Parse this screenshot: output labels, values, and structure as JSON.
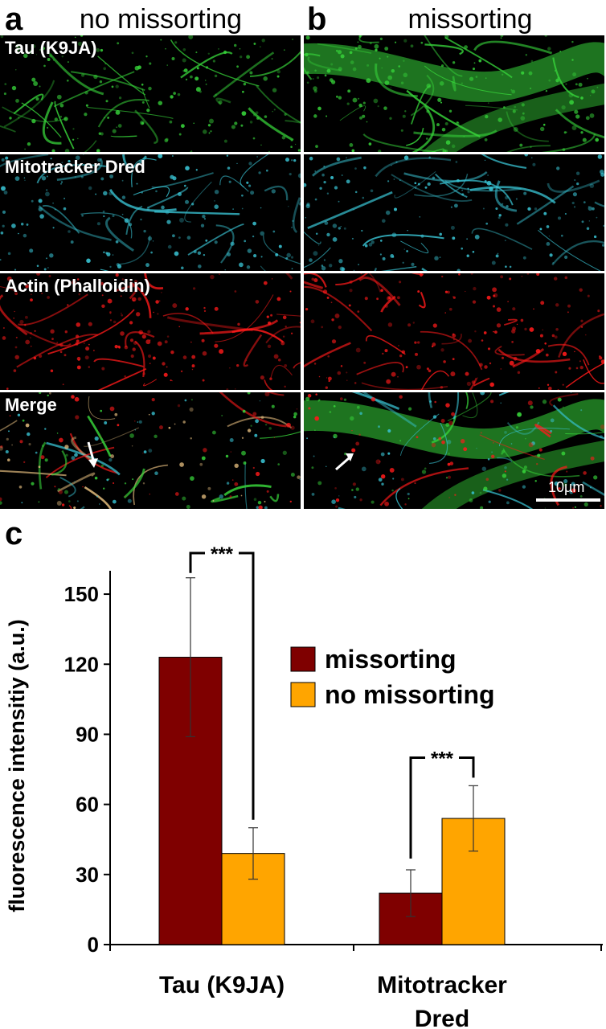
{
  "panel_a": {
    "letter": "a",
    "title": "no missorting"
  },
  "panel_b": {
    "letter": "b",
    "title": "missorting"
  },
  "panel_c": {
    "letter": "c"
  },
  "rows": [
    {
      "label": "Tau (K9JA)",
      "color": "#37d43a"
    },
    {
      "label": "Mitotracker Dred",
      "color": "#39c4d4"
    },
    {
      "label": "Actin (Phalloidin)",
      "color": "#ff1a1a"
    },
    {
      "label": "Merge",
      "color": "#8fcf6a"
    }
  ],
  "scale_bar": {
    "label": "10µm"
  },
  "chart_data": {
    "type": "bar",
    "categories": [
      "Tau (K9JA)",
      "Mitotracker Dred"
    ],
    "series": [
      {
        "name": "missorting",
        "color": "#7f0000",
        "values": [
          123,
          22
        ],
        "errors": [
          34,
          10
        ]
      },
      {
        "name": "no missorting",
        "color": "#ffa500",
        "values": [
          39,
          54
        ],
        "errors": [
          11,
          14
        ]
      }
    ],
    "ylabel": "fluorescence intensitiy (a.u.)",
    "ylim": [
      0,
      160
    ],
    "yticks": [
      0,
      30,
      60,
      90,
      120,
      150
    ],
    "significance": [
      "***",
      "***"
    ],
    "legend_position": "right"
  }
}
